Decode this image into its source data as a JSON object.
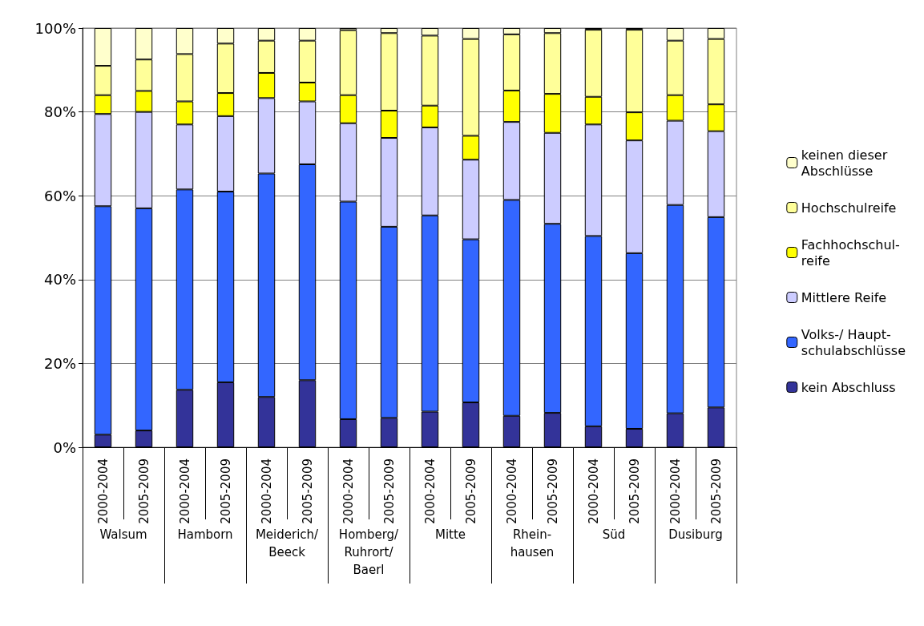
{
  "chart_data": {
    "type": "bar",
    "stacked": true,
    "categories": [
      "2000-2004",
      "2005-2009",
      "2000-2004",
      "2005-2009",
      "2000-2004",
      "2005-2009",
      "2000-2004",
      "2005-2009",
      "2000-2004",
      "2005-2009",
      "2000-2004",
      "2005-2009",
      "2000-2004",
      "2005-2009",
      "2000-2004",
      "2005-2009"
    ],
    "annotations": [
      "Walsum",
      "Hamborn",
      "Meiderich/\nBeeck",
      "Homberg/\nRuhrort/\nBaerl",
      "Mitte",
      "Rhein-\nhausen",
      "Süd",
      "Dusiburg"
    ],
    "series": [
      {
        "name": "kein Abschluss",
        "color": "#333399",
        "values": [
          3,
          4,
          13.7,
          15.5,
          12,
          16,
          6.7,
          7,
          8.5,
          10.7,
          7.5,
          8.2,
          5,
          4.4,
          8.1,
          9.5
        ]
      },
      {
        "name": "Volks-/ Haupt-\nschulabschlüsse",
        "color": "#3366ff",
        "values": [
          54.5,
          53,
          47.8,
          45.5,
          53.3,
          51.5,
          51.9,
          45.6,
          46.8,
          38.9,
          51.5,
          45.1,
          45.4,
          41.9,
          49.7,
          45.4
        ]
      },
      {
        "name": "Mittlere Reife",
        "color": "#ccccff",
        "values": [
          22,
          23,
          15.5,
          18,
          18,
          15,
          18.7,
          21.2,
          21,
          19,
          18.6,
          21.7,
          26.6,
          26.9,
          20.1,
          20.5
        ]
      },
      {
        "name": "Fachhochschul-\nreife",
        "color": "#ffff00",
        "values": [
          4.5,
          5,
          5.5,
          5.5,
          6,
          4.5,
          6.7,
          6.5,
          5.2,
          5.7,
          7.5,
          9.3,
          6.6,
          6.7,
          6.1,
          6.4
        ]
      },
      {
        "name": "Hochschulreife",
        "color": "#ffff99",
        "values": [
          7,
          7.5,
          11.3,
          11.8,
          7.7,
          10,
          15.5,
          18.5,
          16.7,
          23.1,
          13.4,
          14.5,
          16,
          19.7,
          13,
          15.6
        ]
      },
      {
        "name": "keinen dieser\nAbschlüsse",
        "color": "#ffffcc",
        "values": [
          9,
          7.5,
          6.2,
          3.7,
          3,
          3,
          0.5,
          1.2,
          1.8,
          2.6,
          1.5,
          1.2,
          0.4,
          0.4,
          3,
          2.6
        ]
      }
    ],
    "ylim": [
      0,
      100
    ],
    "yticks": [
      {
        "value": 0,
        "label": "0%"
      },
      {
        "value": 20,
        "label": "20%"
      },
      {
        "value": 40,
        "label": "40%"
      },
      {
        "value": 60,
        "label": "60%"
      },
      {
        "value": 80,
        "label": "80%"
      },
      {
        "value": 100,
        "label": "100%"
      }
    ],
    "grid": "y",
    "legend": "right"
  }
}
